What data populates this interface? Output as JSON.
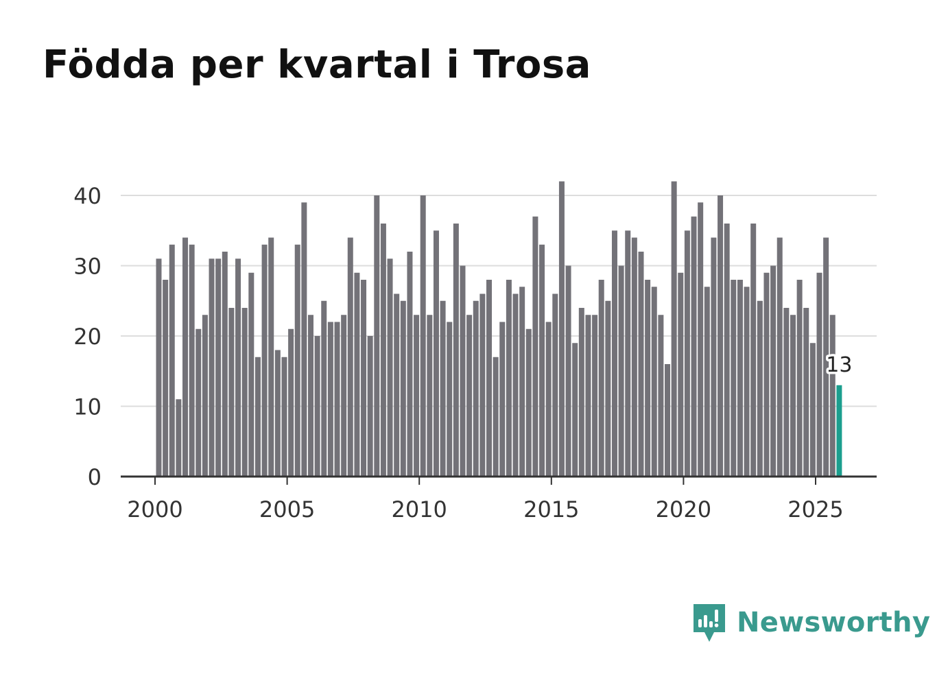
{
  "title": "Födda per kvartal i Trosa",
  "brand": {
    "name": "Newsworthy",
    "color": "#3a9a8e",
    "icon": "newsworthy-logo-icon"
  },
  "colors": {
    "bar": "#737278",
    "highlight": "#1b9e8e",
    "grid": "#dddddd",
    "axis": "#333333"
  },
  "chart_data": {
    "type": "bar",
    "title": "Födda per kvartal i Trosa",
    "xlabel": "",
    "ylabel": "",
    "ylim": [
      0,
      42
    ],
    "yticks": [
      0,
      10,
      20,
      30,
      40
    ],
    "xticks": [
      "2000",
      "2005",
      "2010",
      "2015",
      "2020",
      "2025"
    ],
    "grid": true,
    "start_year": 2000,
    "series": [
      {
        "name": "Födda",
        "values": [
          31,
          28,
          33,
          11,
          34,
          33,
          21,
          23,
          31,
          31,
          32,
          24,
          31,
          24,
          29,
          17,
          33,
          34,
          18,
          17,
          21,
          33,
          39,
          23,
          20,
          25,
          22,
          22,
          23,
          34,
          29,
          28,
          20,
          40,
          36,
          31,
          26,
          25,
          32,
          23,
          40,
          23,
          35,
          25,
          22,
          36,
          30,
          23,
          25,
          26,
          28,
          17,
          22,
          28,
          26,
          27,
          21,
          37,
          33,
          22,
          26,
          42,
          30,
          19,
          24,
          23,
          23,
          28,
          25,
          35,
          30,
          35,
          34,
          32,
          28,
          27,
          23,
          16,
          42,
          29,
          35,
          37,
          39,
          27,
          34,
          40,
          36,
          28,
          28,
          27,
          36,
          25,
          29,
          30,
          34,
          24,
          23,
          28,
          24,
          19,
          29,
          34,
          23,
          13
        ]
      }
    ],
    "highlight_label": "13"
  }
}
